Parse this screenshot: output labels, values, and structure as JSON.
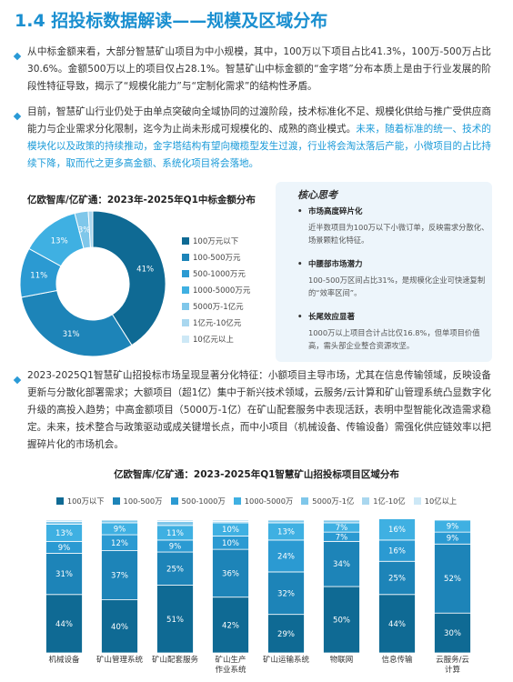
{
  "header": {
    "title": "1.4 招投标数据解读——规模及区域分布"
  },
  "paragraphs": [
    {
      "text": "从中标金额来看，大部分智慧矿山项目为中小规模，其中，100万以下项目占比41.3%，100万-500万占比30.6%。金额500万以上的项目仅占28.1%。智慧矿山中标金额的“金字塔”分布本质上是由于行业发展的阶段性特征导致，揭示了“规模化能力”与“定制化需求”的结构性矛盾。"
    },
    {
      "text": "目前，智慧矿山行业仍处于由单点突破向全域协同的过渡阶段，技术标准化不足、规模化供给与推广受供应商能力与企业需求分化限制，迄今为止尚未形成可规模化的、成熟的商业模式。",
      "highlight": "未来，随着标准的统一、技术的模块化以及政策的持续推动，金字塔结构有望向橄榄型发生过渡，行业将会淘汰落后产能，小微项目的占比持续下降，取而代之更多高金额、系统化项目将会落地。"
    },
    {
      "text": "2023-2025Q1智慧矿山招投标市场呈现显著分化特征：小额项目主导市场，尤其在信息传输领域，反映设备更新与分散化部署需求；大额项目（超1亿）集中于新兴技术领域，云服务/云计算和矿山管理系统凸显数字化升级的高投入趋势；中高金额项目（5000万-1亿）在矿山配套服务中表现活跃，表明中型智能化改造需求稳定。未来，技术整合与政策驱动或成关键增长点，而中小项目（机械设备、传输设备）需强化供应链效率以把握碎片化的市场机会。"
    }
  ],
  "insight_box": {
    "title": "核心思考",
    "items": [
      {
        "title": "市场高度碎片化",
        "text": "近半数项目为100万以下小微订单，反映需求分散化、场景颗粒化特征。"
      },
      {
        "title": "中腰部市场潜力",
        "text": "100-500万区间占比31%，是规模化企业可快速复制的“效率区间”。"
      },
      {
        "title": "长尾效应显著",
        "text": "1000万以上项目合计占比仅16.8%，但单项目价值高，需头部企业整合资源攻坚。"
      }
    ]
  },
  "chart_data": [
    {
      "type": "donut",
      "title": "亿欧智库/亿矿通：2023年-2025年Q1中标金额分布",
      "categories": [
        "100万元以下",
        "100-500万元",
        "500-1000万元",
        "1000-5000万元",
        "5000万-1亿元",
        "1亿元-10亿元",
        "10亿元以上"
      ],
      "values": [
        41,
        31,
        11,
        13,
        3,
        1,
        0
      ],
      "value_labels": [
        "41%",
        "31%",
        "11%",
        "13%",
        "3%",
        null,
        null
      ],
      "colors": [
        "#0f6a94",
        "#1d84b8",
        "#2b9ad2",
        "#3fb0e2",
        "#7fc7ea",
        "#a9d7ef",
        "#cde8f6"
      ]
    },
    {
      "type": "stacked_bar",
      "title": "亿欧智库/亿矿通：2023-2025年Q1智慧矿山招投标项目区域分布",
      "categories": [
        "机械设备",
        "矿山管理系统",
        "矿山配套服务",
        "矿山生产作业系统",
        "矿山运输系统",
        "物联网",
        "信息传输",
        "云服务/云计算"
      ],
      "ylim": [
        0,
        100
      ],
      "series": [
        {
          "name": "100万以下",
          "color": "#0f6a94",
          "values": [
            44,
            40,
            51,
            42,
            29,
            50,
            44,
            30
          ],
          "value_labels": [
            "44%",
            "40%",
            "51%",
            "42%",
            "29%",
            "50%",
            "44%",
            "30%"
          ]
        },
        {
          "name": "100-500万",
          "color": "#1d84b8",
          "values": [
            31,
            37,
            25,
            36,
            32,
            34,
            25,
            52
          ],
          "value_labels": [
            "31%",
            "37%",
            "25%",
            "36%",
            "32%",
            "34%",
            "25%",
            "52%"
          ]
        },
        {
          "name": "500-1000万",
          "color": "#2b9ad2",
          "values": [
            9,
            12,
            9,
            10,
            24,
            7,
            16,
            9
          ],
          "value_labels": [
            "9%",
            "12%",
            "9%",
            "10%",
            "24%",
            "7%",
            "16%",
            "9%"
          ]
        },
        {
          "name": "1000-5000万",
          "color": "#3fb0e2",
          "values": [
            13,
            9,
            11,
            10,
            13,
            7,
            16,
            9
          ],
          "value_labels": [
            "13%",
            "9%",
            "11%",
            "10%",
            "13%",
            "7%",
            "16%",
            "9%"
          ]
        },
        {
          "name": "5000万-1亿",
          "color": "#7fc7ea",
          "values": [
            2,
            2,
            3,
            1,
            2,
            2,
            0,
            0
          ]
        },
        {
          "name": "1亿-10亿",
          "color": "#a9d7ef",
          "values": [
            1,
            0,
            1,
            1,
            0,
            0,
            0,
            0
          ]
        },
        {
          "name": "10亿以上",
          "color": "#cde8f6",
          "values": [
            0,
            0,
            0,
            0,
            0,
            0,
            0,
            0
          ]
        }
      ]
    }
  ]
}
